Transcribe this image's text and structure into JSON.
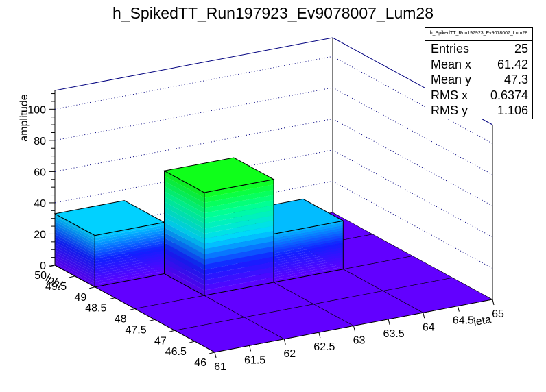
{
  "title": "h_SpikedTT_Run197923_Ev9078007_Lum28",
  "stats": {
    "name": "h_SpikedTT_Run197923_Ev9078007_Lum28",
    "rows": [
      {
        "label": "Entries",
        "value": "25"
      },
      {
        "label": "Mean x",
        "value": "61.42"
      },
      {
        "label": "Mean y",
        "value": "47.3"
      },
      {
        "label": "RMS x",
        "value": "0.6374"
      },
      {
        "label": "RMS y",
        "value": "1.106"
      }
    ]
  },
  "chart_data": {
    "type": "lego",
    "title": "h_SpikedTT_Run197923_Ev9078007_Lum28",
    "xlabel": "ieta",
    "ylabel": "iphi",
    "zlabel": "amplitude",
    "x_ticks": [
      "61",
      "61.5",
      "62",
      "62.5",
      "63",
      "63.5",
      "64",
      "64.5",
      "65"
    ],
    "y_ticks": [
      "46",
      "46.5",
      "47",
      "47.5",
      "48",
      "48.5",
      "49",
      "49.5",
      "50"
    ],
    "z_ticks": [
      "0",
      "20",
      "40",
      "60",
      "80",
      "100"
    ],
    "xlim": [
      61,
      65
    ],
    "ylim": [
      46,
      50
    ],
    "zlim": [
      0,
      112
    ],
    "x_bins": [
      61,
      62,
      63,
      64
    ],
    "y_bins": [
      46,
      47,
      48,
      49
    ],
    "values": [
      [
        0,
        0,
        0,
        0
      ],
      [
        0,
        0,
        0,
        0
      ],
      [
        0,
        66,
        0,
        0
      ],
      [
        0,
        33,
        0,
        0
      ]
    ],
    "values_x_bin_62": [
      0,
      0,
      31,
      0
    ],
    "grid": true
  }
}
